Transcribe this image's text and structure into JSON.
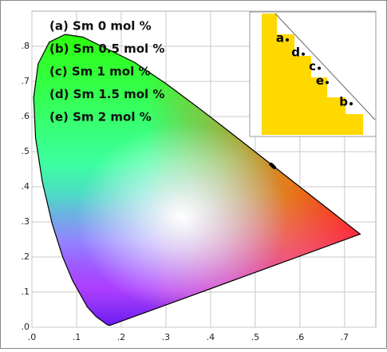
{
  "chart_data": {
    "type": "scatter",
    "xlim": [
      0,
      0.77
    ],
    "ylim": [
      0,
      0.9
    ],
    "xticks": [
      {
        "value": 0,
        "label": ".0"
      },
      {
        "value": 0.1,
        "label": ".1"
      },
      {
        "value": 0.2,
        "label": ".2"
      },
      {
        "value": 0.3,
        "label": ".3"
      },
      {
        "value": 0.4,
        "label": ".4"
      },
      {
        "value": 0.5,
        "label": ".5"
      },
      {
        "value": 0.6,
        "label": ".6"
      },
      {
        "value": 0.7,
        "label": ".7"
      }
    ],
    "yticks": [
      {
        "value": 0,
        "label": ".0"
      },
      {
        "value": 0.1,
        "label": ".1"
      },
      {
        "value": 0.2,
        "label": ".2"
      },
      {
        "value": 0.3,
        "label": ".3"
      },
      {
        "value": 0.4,
        "label": ".4"
      },
      {
        "value": 0.5,
        "label": ".5"
      },
      {
        "value": 0.6,
        "label": ".6"
      },
      {
        "value": 0.7,
        "label": ".7"
      },
      {
        "value": 0.8,
        "label": ".8"
      }
    ],
    "grid": true,
    "series": [
      {
        "name": "(a) Sm 0 mol %",
        "label": "a",
        "color": "#000000",
        "x": [
          0.535
        ],
        "values": [
          0.464
        ]
      },
      {
        "name": "(b) Sm 0.5 mol %",
        "label": "b",
        "color": "#000000",
        "x": [
          0.543
        ],
        "values": [
          0.455
        ]
      },
      {
        "name": "(c) Sm 1 mol %",
        "label": "c",
        "color": "#000000",
        "x": [
          0.539
        ],
        "values": [
          0.46
        ]
      },
      {
        "name": "(d) Sm 1.5 mol %",
        "label": "d",
        "color": "#000000",
        "x": [
          0.537
        ],
        "values": [
          0.462
        ]
      },
      {
        "name": "(e) Sm 2 mol %",
        "label": "e",
        "color": "#000000",
        "x": [
          0.54
        ],
        "values": [
          0.458
        ]
      }
    ]
  }
}
